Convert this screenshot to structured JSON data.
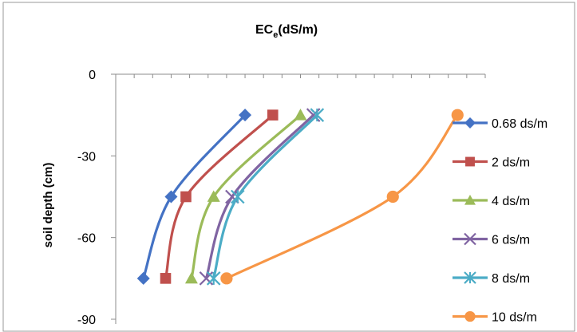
{
  "chart_data": {
    "type": "line",
    "title": "EC",
    "title_subscript": "e",
    "title_suffix": "(dS/m)",
    "ylabel": "soil depth (cm)",
    "xlabel": "",
    "ylim": [
      -90,
      0
    ],
    "y_ticks": [
      "0",
      "-30",
      "-60",
      "-90"
    ],
    "x_axis_position": "top",
    "grid": false,
    "legend_position": "right",
    "series": [
      {
        "name": "0.68 ds/m",
        "color": "#4472C4",
        "marker": "diamond",
        "points": [
          [
            0.7,
            -15
          ],
          [
            0.3,
            -45
          ],
          [
            0.15,
            -75
          ]
        ]
      },
      {
        "name": "2 ds/m",
        "color": "#C0504D",
        "marker": "square",
        "points": [
          [
            0.85,
            -15
          ],
          [
            0.38,
            -45
          ],
          [
            0.27,
            -75
          ]
        ]
      },
      {
        "name": "4 ds/m",
        "color": "#9BBB59",
        "marker": "triangle",
        "points": [
          [
            1.0,
            -15
          ],
          [
            0.53,
            -45
          ],
          [
            0.41,
            -75
          ]
        ]
      },
      {
        "name": "6 ds/m",
        "color": "#8064A2",
        "marker": "x",
        "points": [
          [
            1.07,
            -15
          ],
          [
            0.63,
            -45
          ],
          [
            0.49,
            -75
          ]
        ]
      },
      {
        "name": "8 ds/m",
        "color": "#4BACC6",
        "marker": "star",
        "points": [
          [
            1.09,
            -15
          ],
          [
            0.66,
            -45
          ],
          [
            0.53,
            -75
          ]
        ]
      },
      {
        "name": "10 ds/m",
        "color": "#F79646",
        "marker": "circle",
        "points": [
          [
            1.85,
            -15
          ],
          [
            1.5,
            -45
          ],
          [
            0.6,
            -75
          ]
        ]
      }
    ]
  }
}
